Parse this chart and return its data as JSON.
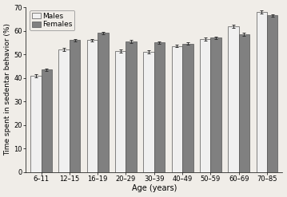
{
  "categories": [
    "6–11",
    "12–15",
    "16–19",
    "20–29",
    "30–39",
    "40–49",
    "50–59",
    "60–69",
    "70–85"
  ],
  "males": [
    41.0,
    52.0,
    56.0,
    51.5,
    51.0,
    53.5,
    56.5,
    62.0,
    68.0
  ],
  "females": [
    43.5,
    56.0,
    59.0,
    55.5,
    55.0,
    54.5,
    57.0,
    58.5,
    66.5
  ],
  "males_err": [
    0.7,
    0.7,
    0.6,
    0.7,
    0.6,
    0.5,
    0.7,
    0.7,
    0.6
  ],
  "females_err": [
    0.5,
    0.6,
    0.5,
    0.6,
    0.5,
    0.5,
    0.5,
    0.6,
    0.5
  ],
  "bar_color_males": "#f0f0f0",
  "bar_color_females": "#808080",
  "bar_edgecolor": "#555555",
  "ylabel": "Time spent in sedentar behavior (%)",
  "xlabel": "Age (years)",
  "ylim": [
    0,
    70
  ],
  "yticks": [
    0,
    10,
    20,
    30,
    40,
    50,
    60,
    70
  ],
  "legend_males": "Males",
  "legend_females": "Females",
  "background_color": "#f0ede8",
  "bar_width": 0.38,
  "capsize": 1.5,
  "elinewidth": 0.7,
  "ylabel_fontsize": 6.5,
  "xlabel_fontsize": 7.0,
  "tick_fontsize": 6.0,
  "legend_fontsize": 6.5
}
